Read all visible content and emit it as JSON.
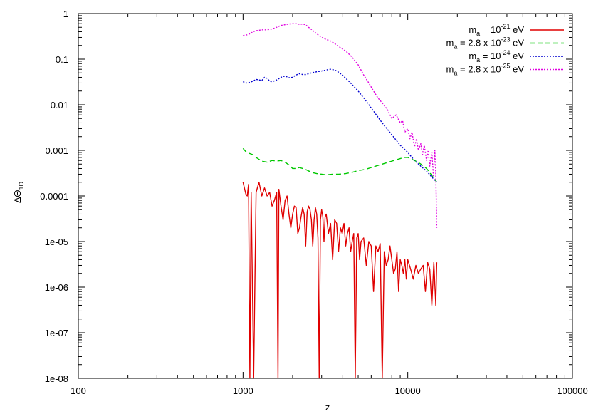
{
  "chart_data": {
    "type": "line",
    "xlabel": "z",
    "ylabel": "ΔΘ1D",
    "ylabel_main": "ΔΘ",
    "ylabel_sub": "1D",
    "xscale": "log",
    "yscale": "log",
    "xlim": [
      100,
      100000
    ],
    "ylim": [
      1e-08,
      1
    ],
    "grid": false,
    "legend_position": "top-right",
    "x_tick_labels": [
      "100",
      "1000",
      "10000",
      "100000"
    ],
    "y_tick_labels": [
      "1e-08",
      "1e-07",
      "1e-06",
      "1e-05",
      "0.0001",
      "0.001",
      "0.01",
      "0.1",
      "1"
    ],
    "series": [
      {
        "name": "m_a = 10^-21 eV",
        "legend": {
          "pre": "m",
          "sub": "a",
          "mid": " = 10",
          "sup": "-21",
          "post": " eV"
        },
        "color": "#e00000",
        "dash": "solid",
        "x": [
          1000,
          1040,
          1060,
          1080,
          1100,
          1120,
          1160,
          1200,
          1250,
          1300,
          1350,
          1400,
          1450,
          1500,
          1550,
          1600,
          1630,
          1650,
          1700,
          1750,
          1800,
          1850,
          1900,
          1950,
          2000,
          2050,
          2100,
          2150,
          2200,
          2250,
          2300,
          2350,
          2400,
          2450,
          2500,
          2550,
          2600,
          2650,
          2700,
          2750,
          2800,
          2850,
          2900,
          2950,
          3000,
          3050,
          3100,
          3150,
          3200,
          3300,
          3400,
          3500,
          3600,
          3700,
          3800,
          3900,
          4000,
          4100,
          4200,
          4300,
          4400,
          4500,
          4600,
          4700,
          4800,
          4900,
          5000,
          5100,
          5200,
          5400,
          5600,
          5800,
          6000,
          6200,
          6400,
          6600,
          6800,
          7000,
          7200,
          7400,
          7600,
          7800,
          8000,
          8200,
          8400,
          8600,
          8800,
          9000,
          9200,
          9400,
          9600,
          9800,
          10000,
          10400,
          10800,
          11200,
          11600,
          12000,
          12400,
          12800,
          13200,
          13600,
          14000,
          14400,
          14800,
          15000
        ],
        "y": [
          0.0002,
          0.00011,
          0.0001,
          0.00018,
          1e-08,
          0.00012,
          1e-08,
          0.00012,
          0.0002,
          0.0001,
          0.00015,
          0.0001,
          0.00012,
          6e-05,
          8e-05,
          0.00012,
          1e-08,
          0.00014,
          6e-05,
          3e-05,
          8e-05,
          0.0001,
          4e-05,
          2e-05,
          4e-05,
          6e-05,
          5.5e-05,
          1.5e-05,
          2e-05,
          3.5e-05,
          5.5e-05,
          4e-05,
          8e-06,
          4.5e-05,
          6e-05,
          5e-05,
          3e-05,
          8e-06,
          3e-05,
          5.5e-05,
          4e-05,
          1.2e-05,
          1e-08,
          3e-05,
          5e-05,
          3.5e-05,
          1e-05,
          3.5e-05,
          4e-05,
          1.5e-05,
          2.5e-05,
          4e-06,
          3e-05,
          2.5e-05,
          6e-06,
          2e-05,
          1.5e-05,
          2.5e-05,
          8e-06,
          1.5e-05,
          2e-05,
          6e-06,
          1e-05,
          1.5e-05,
          1e-08,
          1.2e-05,
          1.5e-05,
          4e-06,
          1e-05,
          1.2e-05,
          3e-06,
          1e-05,
          8e-06,
          8e-07,
          8e-06,
          6e-06,
          9e-06,
          1e-08,
          6e-06,
          3e-06,
          4e-06,
          8e-06,
          4e-06,
          2e-06,
          2.5e-06,
          6e-06,
          8e-07,
          4e-06,
          3e-06,
          2e-06,
          4e-06,
          1.5e-06,
          4e-06,
          2.5e-06,
          1.5e-06,
          3e-06,
          2e-06,
          2.5e-06,
          3e-06,
          8e-07,
          3.5e-06,
          2.5e-06,
          4e-07,
          3.5e-06,
          4e-07,
          3.5e-06
        ]
      },
      {
        "name": "m_a = 2.8 x 10^-23 eV",
        "legend": {
          "pre": "m",
          "sub": "a",
          "mid": " = 2.8 x 10",
          "sup": "-23",
          "post": " eV"
        },
        "color": "#00c800",
        "dash": "dashed",
        "x": [
          1000,
          1050,
          1100,
          1150,
          1200,
          1300,
          1400,
          1500,
          1600,
          1700,
          1800,
          1900,
          2000,
          2100,
          2200,
          2300,
          2400,
          2600,
          2800,
          3000,
          3200,
          3500,
          3800,
          4200,
          4600,
          5000,
          5500,
          6000,
          6500,
          7000,
          7500,
          8000,
          8500,
          9000,
          9500,
          10000,
          10500,
          11000,
          11500,
          12000,
          12500,
          13000,
          13500,
          14000,
          14500,
          15000
        ],
        "y": [
          0.0011,
          0.0009,
          0.00085,
          0.0008,
          0.0007,
          0.00058,
          0.00055,
          0.0006,
          0.00058,
          0.0006,
          0.00055,
          0.00048,
          0.0004,
          0.0004,
          0.00042,
          0.0004,
          0.00038,
          0.00033,
          0.00031,
          0.0003,
          0.00029,
          0.0003,
          0.0003,
          0.00031,
          0.00033,
          0.00036,
          0.00038,
          0.00042,
          0.00046,
          0.0005,
          0.00054,
          0.00058,
          0.00062,
          0.00066,
          0.0007,
          0.0007,
          0.00065,
          0.0006,
          0.00055,
          0.0005,
          0.00045,
          0.0004,
          0.00034,
          0.00028,
          0.00024,
          0.0002
        ]
      },
      {
        "name": "m_a = 10^-24 eV",
        "legend": {
          "pre": "m",
          "sub": "a",
          "mid": " = 10",
          "sup": "-24",
          "post": " eV"
        },
        "color": "#0000d0",
        "dash": "dotted",
        "x": [
          1000,
          1050,
          1100,
          1150,
          1200,
          1250,
          1300,
          1350,
          1400,
          1450,
          1500,
          1600,
          1700,
          1800,
          1900,
          2000,
          2100,
          2200,
          2300,
          2400,
          2500,
          2600,
          2800,
          3000,
          3200,
          3400,
          3600,
          3800,
          4000,
          4500,
          5000,
          5500,
          6000,
          7000,
          8000,
          9000,
          10000,
          11000,
          12000,
          13000,
          14000,
          15000
        ],
        "y": [
          0.032,
          0.03,
          0.031,
          0.033,
          0.036,
          0.035,
          0.034,
          0.04,
          0.038,
          0.033,
          0.032,
          0.035,
          0.04,
          0.043,
          0.039,
          0.04,
          0.045,
          0.048,
          0.046,
          0.046,
          0.048,
          0.05,
          0.053,
          0.055,
          0.058,
          0.06,
          0.058,
          0.052,
          0.045,
          0.03,
          0.02,
          0.013,
          0.0085,
          0.004,
          0.0022,
          0.0013,
          0.0009,
          0.0006,
          0.00045,
          0.00035,
          0.00026,
          0.0002
        ]
      },
      {
        "name": "m_a = 2.8 x 10^-25 eV",
        "legend": {
          "pre": "m",
          "sub": "a",
          "mid": " = 2.8 x 10",
          "sup": "-25",
          "post": " eV"
        },
        "color": "#e000e0",
        "dash": "dotted",
        "x": [
          1000,
          1050,
          1100,
          1150,
          1200,
          1300,
          1400,
          1500,
          1600,
          1700,
          1800,
          1900,
          2000,
          2100,
          2200,
          2300,
          2400,
          2500,
          2600,
          2800,
          3000,
          3200,
          3400,
          3600,
          3800,
          4000,
          4300,
          4600,
          5000,
          5400,
          5800,
          6200,
          6600,
          7000,
          7500,
          8000,
          8500,
          9000,
          9300,
          9600,
          10000,
          10300,
          10600,
          11000,
          11300,
          11600,
          12000,
          12300,
          12600,
          13000,
          13300,
          13600,
          14000,
          14300,
          14600,
          14800,
          15000
        ],
        "y": [
          0.33,
          0.34,
          0.36,
          0.4,
          0.42,
          0.44,
          0.44,
          0.46,
          0.5,
          0.55,
          0.57,
          0.59,
          0.6,
          0.6,
          0.58,
          0.59,
          0.57,
          0.5,
          0.45,
          0.36,
          0.3,
          0.27,
          0.25,
          0.22,
          0.19,
          0.17,
          0.14,
          0.11,
          0.075,
          0.045,
          0.03,
          0.02,
          0.014,
          0.011,
          0.008,
          0.005,
          0.006,
          0.004,
          0.0045,
          0.0025,
          0.003,
          0.0018,
          0.0025,
          0.0012,
          0.0018,
          0.001,
          0.0014,
          0.0008,
          0.0013,
          0.0006,
          0.001,
          0.00045,
          0.0009,
          0.00028,
          0.001,
          0.0003,
          2e-05
        ]
      }
    ]
  }
}
